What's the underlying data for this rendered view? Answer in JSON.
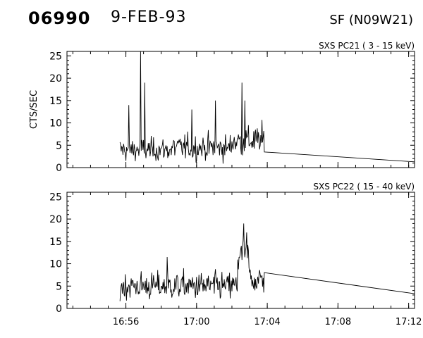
{
  "header": {
    "id": "06990",
    "date": "9-FEB-93",
    "region": "SF (N09W21)"
  },
  "chart_data": [
    {
      "type": "line",
      "title": "SXS PC21  (  3 - 15 keV)",
      "ylabel": "CTS/SEC",
      "xlabel": "",
      "ylim": [
        0,
        26
      ],
      "yticks": [
        0,
        5,
        10,
        15,
        20,
        25
      ],
      "xlim": [
        "16:52:40",
        "17:12:20"
      ],
      "xticks": [
        "16:56",
        "17:00",
        "17:04",
        "17:08",
        "17:12"
      ],
      "grid": false,
      "series": [
        {
          "style": "noisy time series",
          "segments": [
            {
              "from": "16:55:40",
              "to": "16:58:40",
              "mean": 4.0,
              "std": 1.8
            },
            {
              "from": "16:58:40",
              "to": "17:02:00",
              "mean": 4.5,
              "std": 2.0
            },
            {
              "from": "17:02:00",
              "to": "17:03:50",
              "mean": 6.0,
              "std": 2.4
            }
          ],
          "spikes": [
            {
              "t": "16:56:50",
              "y": 26
            },
            {
              "t": "16:56:10",
              "y": 14
            },
            {
              "t": "16:57:05",
              "y": 19
            },
            {
              "t": "16:59:45",
              "y": 13
            },
            {
              "t": "17:01:05",
              "y": 15
            },
            {
              "t": "17:02:35",
              "y": 19
            },
            {
              "t": "17:02:45",
              "y": 15
            }
          ],
          "tail": [
            [
              "17:03:50",
              3.5
            ],
            [
              "17:12:20",
              1.3
            ]
          ]
        }
      ]
    },
    {
      "type": "line",
      "title": "SXS PC22  ( 15 - 40 keV)",
      "ylabel": "",
      "xlabel": "",
      "ylim": [
        0,
        26
      ],
      "yticks": [
        0,
        5,
        10,
        15,
        20,
        25
      ],
      "xlim": [
        "16:52:40",
        "17:12:20"
      ],
      "xticks": [
        "16:56",
        "17:00",
        "17:04",
        "17:08",
        "17:12"
      ],
      "grid": false,
      "series": [
        {
          "style": "noisy time series",
          "segments": [
            {
              "from": "16:55:40",
              "to": "17:02:20",
              "mean": 5.0,
              "std": 2.2
            },
            {
              "from": "17:02:20",
              "to": "17:03:00",
              "mean": 11.5,
              "std": 2.8
            },
            {
              "from": "17:03:00",
              "to": "17:03:50",
              "mean": 6.5,
              "std": 2.2
            }
          ],
          "spikes": [
            {
              "t": "17:02:40",
              "y": 19
            },
            {
              "t": "17:02:50",
              "y": 17
            },
            {
              "t": "16:58:20",
              "y": 11.5
            }
          ],
          "tail": [
            [
              "17:03:50",
              8.0
            ],
            [
              "17:12:20",
              3.3
            ]
          ]
        }
      ]
    }
  ]
}
